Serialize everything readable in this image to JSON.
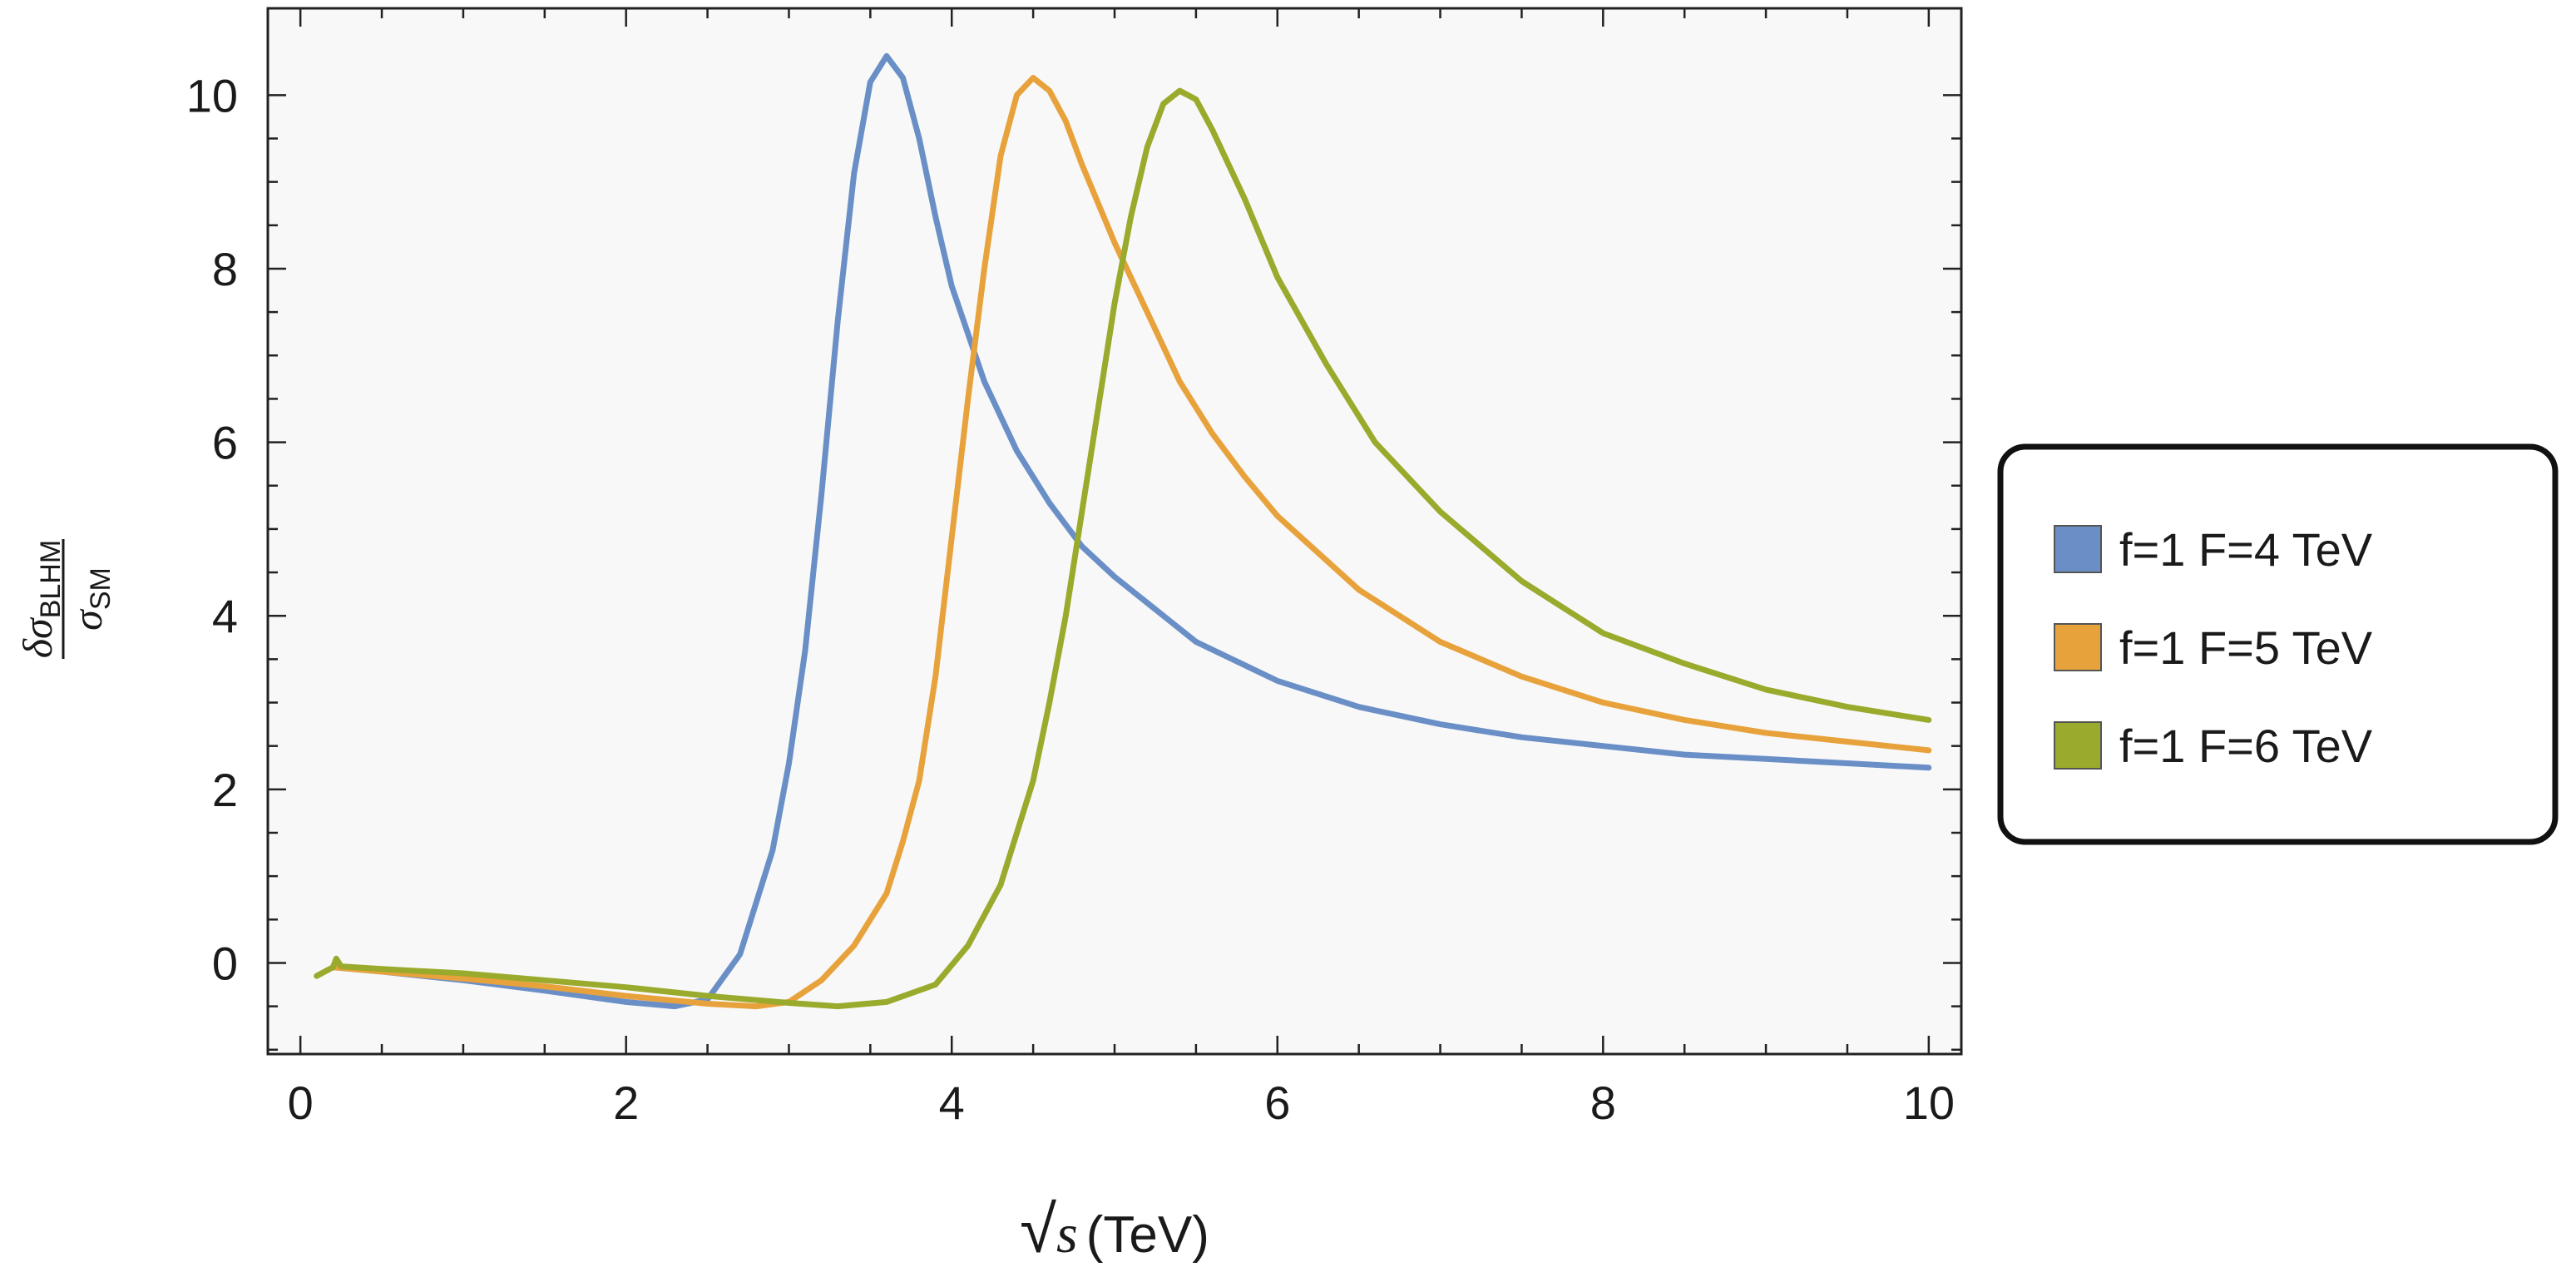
{
  "chart_data": {
    "type": "line",
    "xlabel": "√s (TeV)",
    "xlabel_parts": {
      "radical": "√",
      "var": "s",
      "unit": "(TeV)"
    },
    "ylabel": "δσ_BLHM / σ_SM",
    "ylabel_parts": {
      "num_sym": "δσ",
      "num_sub": "BLHM",
      "den_sym": "σ",
      "den_sub": "SM"
    },
    "xlim": [
      -0.2,
      10.2
    ],
    "ylim": [
      -1.05,
      11.0
    ],
    "xticks": [
      0,
      2,
      4,
      6,
      8,
      10
    ],
    "yticks": [
      0,
      2,
      4,
      6,
      8,
      10
    ],
    "grid": false,
    "legend_position": "right",
    "series": [
      {
        "name": "f=1 F=4 TeV",
        "color": "#6a8fc7",
        "x": [
          0.2,
          0.5,
          1.0,
          1.5,
          2.0,
          2.3,
          2.5,
          2.7,
          2.9,
          3.0,
          3.1,
          3.2,
          3.3,
          3.4,
          3.5,
          3.6,
          3.7,
          3.8,
          3.9,
          4.0,
          4.2,
          4.4,
          4.6,
          4.8,
          5.0,
          5.5,
          6.0,
          6.5,
          7.0,
          7.5,
          8.0,
          8.5,
          9.0,
          9.5,
          10.0
        ],
        "y": [
          -0.05,
          -0.1,
          -0.2,
          -0.32,
          -0.45,
          -0.5,
          -0.42,
          0.1,
          1.3,
          2.3,
          3.6,
          5.4,
          7.4,
          9.1,
          10.15,
          10.45,
          10.2,
          9.5,
          8.6,
          7.8,
          6.7,
          5.9,
          5.3,
          4.8,
          4.45,
          3.7,
          3.25,
          2.95,
          2.75,
          2.6,
          2.5,
          2.4,
          2.35,
          2.3,
          2.25
        ]
      },
      {
        "name": "f=1 F=5 TeV",
        "color": "#e8a23c",
        "x": [
          0.2,
          0.5,
          1.0,
          1.5,
          2.0,
          2.5,
          2.8,
          3.0,
          3.2,
          3.4,
          3.6,
          3.7,
          3.8,
          3.9,
          4.0,
          4.1,
          4.2,
          4.3,
          4.4,
          4.5,
          4.6,
          4.7,
          4.8,
          5.0,
          5.2,
          5.4,
          5.6,
          5.8,
          6.0,
          6.5,
          7.0,
          7.5,
          8.0,
          8.5,
          9.0,
          9.5,
          10.0
        ],
        "y": [
          -0.05,
          -0.1,
          -0.18,
          -0.27,
          -0.38,
          -0.47,
          -0.5,
          -0.45,
          -0.2,
          0.2,
          0.8,
          1.4,
          2.1,
          3.3,
          4.9,
          6.5,
          8.0,
          9.3,
          10.0,
          10.2,
          10.05,
          9.7,
          9.2,
          8.3,
          7.5,
          6.7,
          6.1,
          5.6,
          5.15,
          4.3,
          3.7,
          3.3,
          3.0,
          2.8,
          2.65,
          2.55,
          2.45
        ]
      },
      {
        "name": "f=1 F=6 TeV",
        "color": "#9aaa2c",
        "x": [
          0.1,
          0.15,
          0.2,
          0.22,
          0.25,
          0.5,
          1.0,
          1.5,
          2.0,
          2.5,
          3.0,
          3.3,
          3.6,
          3.9,
          4.1,
          4.3,
          4.5,
          4.6,
          4.7,
          4.8,
          4.9,
          5.0,
          5.1,
          5.2,
          5.3,
          5.4,
          5.5,
          5.6,
          5.8,
          6.0,
          6.3,
          6.6,
          7.0,
          7.5,
          8.0,
          8.5,
          9.0,
          9.5,
          10.0
        ],
        "y": [
          -0.15,
          -0.1,
          -0.05,
          0.05,
          -0.04,
          -0.07,
          -0.12,
          -0.2,
          -0.28,
          -0.38,
          -0.46,
          -0.5,
          -0.45,
          -0.25,
          0.2,
          0.9,
          2.1,
          3.0,
          4.0,
          5.2,
          6.4,
          7.6,
          8.6,
          9.4,
          9.9,
          10.05,
          9.95,
          9.6,
          8.8,
          7.9,
          6.9,
          6.0,
          5.2,
          4.4,
          3.8,
          3.45,
          3.15,
          2.95,
          2.8
        ]
      }
    ]
  }
}
